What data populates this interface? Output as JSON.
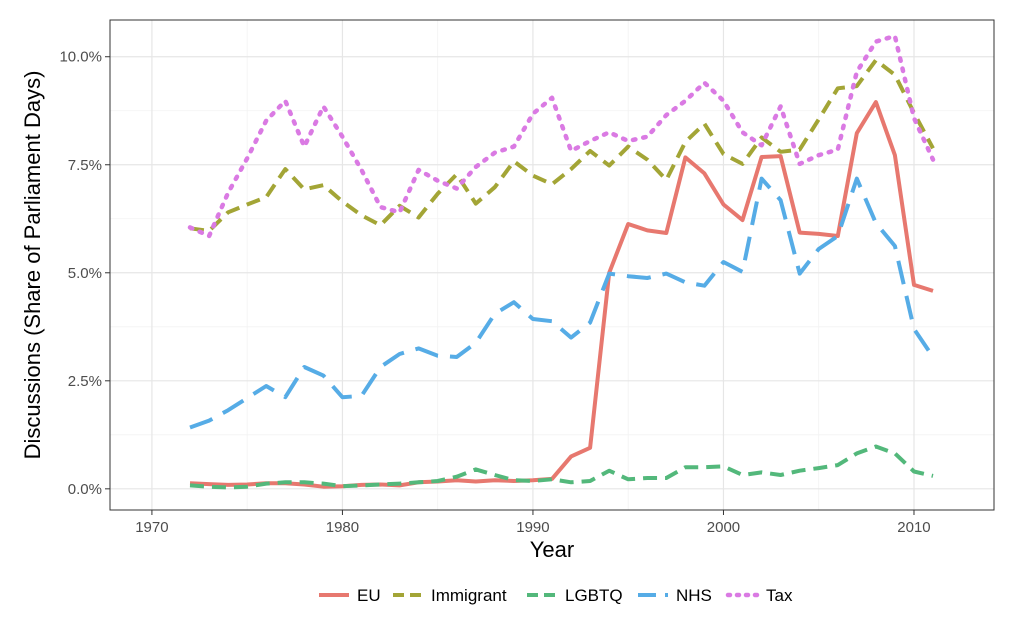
{
  "chart_data": {
    "type": "line",
    "xlabel": "Year",
    "ylabel": "Discussions (Share of Parliament Days)",
    "xlim": [
      1967.8,
      2014.2
    ],
    "ylim": [
      -0.0049,
      0.1085
    ],
    "x_ticks": [
      1970,
      1980,
      1990,
      2000,
      2010
    ],
    "x_tick_labels": [
      "1970",
      "1980",
      "1990",
      "2000",
      "2010"
    ],
    "y_ticks": [
      0,
      0.025,
      0.05,
      0.075,
      0.1
    ],
    "y_tick_labels": [
      "0.0%",
      "2.5%",
      "5.0%",
      "7.5%",
      "10.0%"
    ],
    "grid": true,
    "legend_position": "bottom",
    "x": [
      1972,
      1973,
      1974,
      1975,
      1976,
      1977,
      1978,
      1979,
      1980,
      1981,
      1982,
      1983,
      1984,
      1985,
      1986,
      1987,
      1988,
      1989,
      1990,
      1991,
      1992,
      1993,
      1994,
      1995,
      1996,
      1997,
      1998,
      1999,
      2000,
      2001,
      2002,
      2003,
      2004,
      2005,
      2006,
      2007,
      2008,
      2009,
      2010,
      2011
    ],
    "series": [
      {
        "name": "EU",
        "color": "#E7786F",
        "dash": "solid",
        "values": [
          0.0013,
          0.0011,
          0.0009,
          0.001,
          0.0013,
          0.0013,
          0.001,
          0.0005,
          0.0006,
          0.0009,
          0.001,
          0.0008,
          0.0015,
          0.0017,
          0.002,
          0.0017,
          0.002,
          0.0018,
          0.002,
          0.0023,
          0.0075,
          0.0095,
          0.05,
          0.0613,
          0.0598,
          0.0592,
          0.0767,
          0.073,
          0.0658,
          0.0622,
          0.0768,
          0.077,
          0.0593,
          0.059,
          0.0585,
          0.0823,
          0.0895,
          0.0772,
          0.0472,
          0.0458
        ]
      },
      {
        "name": "Immigrant",
        "color": "#A3A536",
        "dash": "dashed",
        "values": [
          0.0603,
          0.0597,
          0.064,
          0.0658,
          0.0675,
          0.074,
          0.0693,
          0.0703,
          0.0665,
          0.0633,
          0.061,
          0.0655,
          0.0628,
          0.0683,
          0.0728,
          0.066,
          0.0698,
          0.0758,
          0.0725,
          0.0705,
          0.074,
          0.0782,
          0.0748,
          0.0792,
          0.0762,
          0.0715,
          0.0803,
          0.0845,
          0.0775,
          0.0752,
          0.0813,
          0.078,
          0.0785,
          0.0855,
          0.0927,
          0.0932,
          0.0992,
          0.0958,
          0.087,
          0.0788
        ]
      },
      {
        "name": "LGBTQ",
        "color": "#53B87B",
        "dash": "dashed",
        "values": [
          0.0008,
          0.0005,
          0.0003,
          0.0005,
          0.0012,
          0.0015,
          0.0015,
          0.0012,
          0.0006,
          0.0008,
          0.001,
          0.0012,
          0.0015,
          0.0018,
          0.0028,
          0.0045,
          0.0032,
          0.002,
          0.0018,
          0.0022,
          0.0015,
          0.0018,
          0.0042,
          0.0022,
          0.0025,
          0.0025,
          0.005,
          0.005,
          0.0052,
          0.0032,
          0.0038,
          0.0032,
          0.0042,
          0.0048,
          0.0055,
          0.0082,
          0.0098,
          0.0082,
          0.004,
          0.003
        ]
      },
      {
        "name": "NHS",
        "color": "#56ACE6",
        "dash": "longdash",
        "values": [
          0.0142,
          0.0158,
          0.0182,
          0.021,
          0.0238,
          0.0212,
          0.0282,
          0.0262,
          0.0212,
          0.0215,
          0.0282,
          0.0312,
          0.0325,
          0.0308,
          0.0305,
          0.0338,
          0.0405,
          0.0432,
          0.0393,
          0.0388,
          0.035,
          0.0385,
          0.0498,
          0.0492,
          0.0488,
          0.0498,
          0.0478,
          0.047,
          0.0525,
          0.0502,
          0.0718,
          0.0668,
          0.0498,
          0.0555,
          0.0585,
          0.0718,
          0.0615,
          0.0562,
          0.037,
          0.0305
        ]
      },
      {
        "name": "Tax",
        "color": "#DA7AE3",
        "dash": "dotted",
        "values": [
          0.0605,
          0.0585,
          0.0685,
          0.0765,
          0.0852,
          0.0898,
          0.0792,
          0.0885,
          0.0815,
          0.0738,
          0.0652,
          0.064,
          0.0738,
          0.0713,
          0.0695,
          0.0745,
          0.0778,
          0.0792,
          0.0868,
          0.0905,
          0.0782,
          0.0805,
          0.0825,
          0.0805,
          0.0815,
          0.0865,
          0.0898,
          0.094,
          0.0898,
          0.0825,
          0.0795,
          0.0885,
          0.0752,
          0.0772,
          0.0785,
          0.0965,
          0.1035,
          0.1048,
          0.0858,
          0.0762
        ]
      }
    ]
  }
}
